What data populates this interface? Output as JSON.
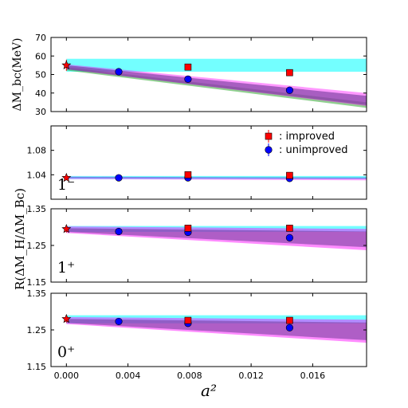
{
  "chart_data": {
    "type": "scatter",
    "x_axis": {
      "label": "a²",
      "range": [
        -0.001,
        0.0195
      ],
      "ticks": [
        0.0,
        0.004,
        0.008,
        0.012,
        0.016
      ],
      "tick_labels": [
        "0.000",
        "0.004",
        "0.008",
        "0.012",
        "0.016"
      ]
    },
    "shared_y_label": "R(ΔM_H/ΔM_Bc)",
    "legend": {
      "placement": "top-right of second panel",
      "entries": [
        {
          "label": ": improved",
          "marker": "red-square",
          "color": "#ff0000"
        },
        {
          "label": ": unimproved",
          "marker": "blue-circle",
          "color": "#0000ff"
        }
      ]
    },
    "panels": [
      {
        "id": "delta-mbc",
        "ylabel": "ΔM_bc(MeV)",
        "panel_label": "",
        "ylim": [
          30,
          70
        ],
        "yticks": [
          30,
          40,
          50,
          60,
          70
        ],
        "ytick_labels": [
          "30",
          "40",
          "50",
          "60",
          "70"
        ],
        "bands": [
          {
            "name": "cyan",
            "color": "#00ffff",
            "opacity": 0.55,
            "x_end": 0.0195,
            "low": [
              51.5,
              51.5
            ],
            "high": [
              58.5,
              58.5
            ]
          },
          {
            "name": "green",
            "color": "#33aa33",
            "opacity": 0.55,
            "x_end": 0.0195,
            "low": [
              52.2,
              32.0
            ],
            "high": [
              54.0,
              35.0
            ]
          },
          {
            "name": "magenta",
            "color": "#ff00ff",
            "opacity": 0.4,
            "x_end": 0.0195,
            "low": [
              53.0,
              33.0
            ],
            "high": [
              55.5,
              40.0
            ]
          },
          {
            "name": "purple-overlap",
            "color": "#7a3fa0",
            "opacity": 0.65,
            "x_end": 0.0195,
            "low": [
              52.8,
              33.5
            ],
            "high": [
              55.0,
              38.5
            ]
          }
        ],
        "improved": {
          "x": [
            0.0079,
            0.0145
          ],
          "y": [
            54.0,
            51.0
          ],
          "err": [
            1.0,
            1.0
          ]
        },
        "unimproved": {
          "x": [
            0.0034,
            0.0079,
            0.0145
          ],
          "y": [
            51.5,
            47.5,
            41.5
          ],
          "err": [
            0.8,
            1.0,
            1.0
          ]
        },
        "continuum": {
          "x": 0.0,
          "y": 55.0,
          "err": 3.0
        }
      },
      {
        "id": "ratio-1minus",
        "ylabel": "",
        "panel_label": "1⁻",
        "ylim": [
          1.0,
          1.12
        ],
        "yticks": [
          1.0,
          1.04,
          1.08,
          1.12
        ],
        "ytick_labels": [
          "",
          "1.04",
          "1.08",
          ""
        ],
        "bands": [
          {
            "name": "cyan",
            "color": "#00ffff",
            "opacity": 0.55,
            "x_end": 0.0195,
            "low": [
              1.033,
              1.033
            ],
            "high": [
              1.038,
              1.038
            ]
          },
          {
            "name": "magenta",
            "color": "#ff00ff",
            "opacity": 0.4,
            "x_end": 0.0195,
            "low": [
              1.033,
              1.031
            ],
            "high": [
              1.037,
              1.035
            ]
          },
          {
            "name": "blue-line",
            "color": "#4a7fd8",
            "opacity": 0.8,
            "x_end": 0.0195,
            "low": [
              1.035,
              1.034
            ],
            "high": [
              1.0365,
              1.0355
            ]
          }
        ],
        "improved": {
          "x": [
            0.0079,
            0.0145
          ],
          "y": [
            1.04,
            1.039
          ],
          "err": [
            0.004,
            0.004
          ]
        },
        "unimproved": {
          "x": [
            0.0034,
            0.0079,
            0.0145
          ],
          "y": [
            1.035,
            1.035,
            1.034
          ],
          "err": [
            0.002,
            0.002,
            0.002
          ]
        },
        "continuum": {
          "x": 0.0,
          "y": 1.035,
          "err": 0.003
        }
      },
      {
        "id": "ratio-1plus",
        "ylabel": "",
        "panel_label": "1⁺",
        "ylim": [
          1.15,
          1.35
        ],
        "yticks": [
          1.15,
          1.25,
          1.35
        ],
        "ytick_labels": [
          "1.15",
          "1.25",
          "1.35"
        ],
        "bands": [
          {
            "name": "cyan",
            "color": "#00ffff",
            "opacity": 0.55,
            "x_end": 0.0195,
            "low": [
              1.287,
              1.287
            ],
            "high": [
              1.303,
              1.303
            ]
          },
          {
            "name": "magenta",
            "color": "#ff00ff",
            "opacity": 0.45,
            "x_end": 0.0195,
            "low": [
              1.284,
              1.237
            ],
            "high": [
              1.302,
              1.295
            ]
          },
          {
            "name": "purple-overlap",
            "color": "#7a3fa0",
            "opacity": 0.6,
            "x_end": 0.0195,
            "low": [
              1.287,
              1.245
            ],
            "high": [
              1.297,
              1.288
            ]
          }
        ],
        "improved": {
          "x": [
            0.0079,
            0.0145
          ],
          "y": [
            1.297,
            1.297
          ],
          "err": [
            0.008,
            0.008
          ]
        },
        "unimproved": {
          "x": [
            0.0034,
            0.0079,
            0.0145
          ],
          "y": [
            1.288,
            1.286,
            1.271
          ],
          "err": [
            0.006,
            0.006,
            0.007
          ]
        },
        "continuum": {
          "x": 0.0,
          "y": 1.295,
          "err": 0.01
        }
      },
      {
        "id": "ratio-0plus",
        "ylabel": "",
        "panel_label": "0⁺",
        "ylim": [
          1.15,
          1.35
        ],
        "yticks": [
          1.15,
          1.25,
          1.35
        ],
        "ytick_labels": [
          "1.15",
          "1.25",
          "1.35"
        ],
        "bands": [
          {
            "name": "cyan",
            "color": "#00ffff",
            "opacity": 0.55,
            "x_end": 0.0195,
            "low": [
              1.268,
              1.268
            ],
            "high": [
              1.29,
              1.29
            ]
          },
          {
            "name": "magenta",
            "color": "#ff00ff",
            "opacity": 0.45,
            "x_end": 0.0195,
            "low": [
              1.266,
              1.215
            ],
            "high": [
              1.285,
              1.278
            ]
          },
          {
            "name": "purple-overlap",
            "color": "#7a3fa0",
            "opacity": 0.6,
            "x_end": 0.0195,
            "low": [
              1.269,
              1.222
            ],
            "high": [
              1.28,
              1.27
            ]
          }
        ],
        "improved": {
          "x": [
            0.0079,
            0.0145
          ],
          "y": [
            1.276,
            1.276
          ],
          "err": [
            0.008,
            0.008
          ]
        },
        "unimproved": {
          "x": [
            0.0034,
            0.0079,
            0.0145
          ],
          "y": [
            1.273,
            1.268,
            1.256
          ],
          "err": [
            0.006,
            0.006,
            0.007
          ]
        },
        "continuum": {
          "x": 0.0,
          "y": 1.28,
          "err": 0.01
        }
      }
    ]
  }
}
